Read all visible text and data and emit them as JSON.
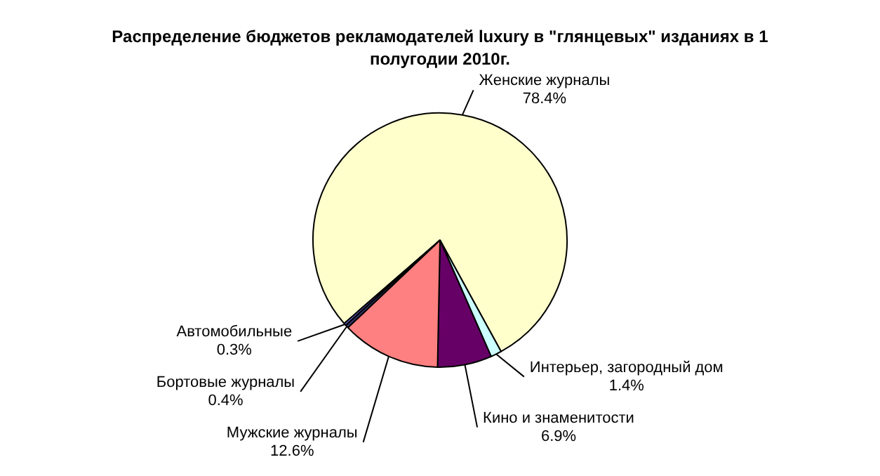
{
  "chart_data": {
    "type": "pie",
    "title": "Распределение бюджетов рекламодателей luxury в \"глянцевых\" изданиях в 1 полугодии 2010г.",
    "categories": [
      "Женские журналы",
      "Интерьер, загородный дом",
      "Кино и знаменитости",
      "Мужские журналы",
      "Бортовые журналы",
      "Автомобильные"
    ],
    "values": [
      78.4,
      1.4,
      6.9,
      12.6,
      0.4,
      0.3
    ],
    "value_labels": [
      "78.4%",
      "1.4%",
      "6.9%",
      "12.6%",
      "0.4%",
      "0.3%"
    ],
    "colors": [
      "#ffffcc",
      "#ccffff",
      "#660066",
      "#ff8080",
      "#333366",
      "#6666cc"
    ],
    "legend": false
  }
}
